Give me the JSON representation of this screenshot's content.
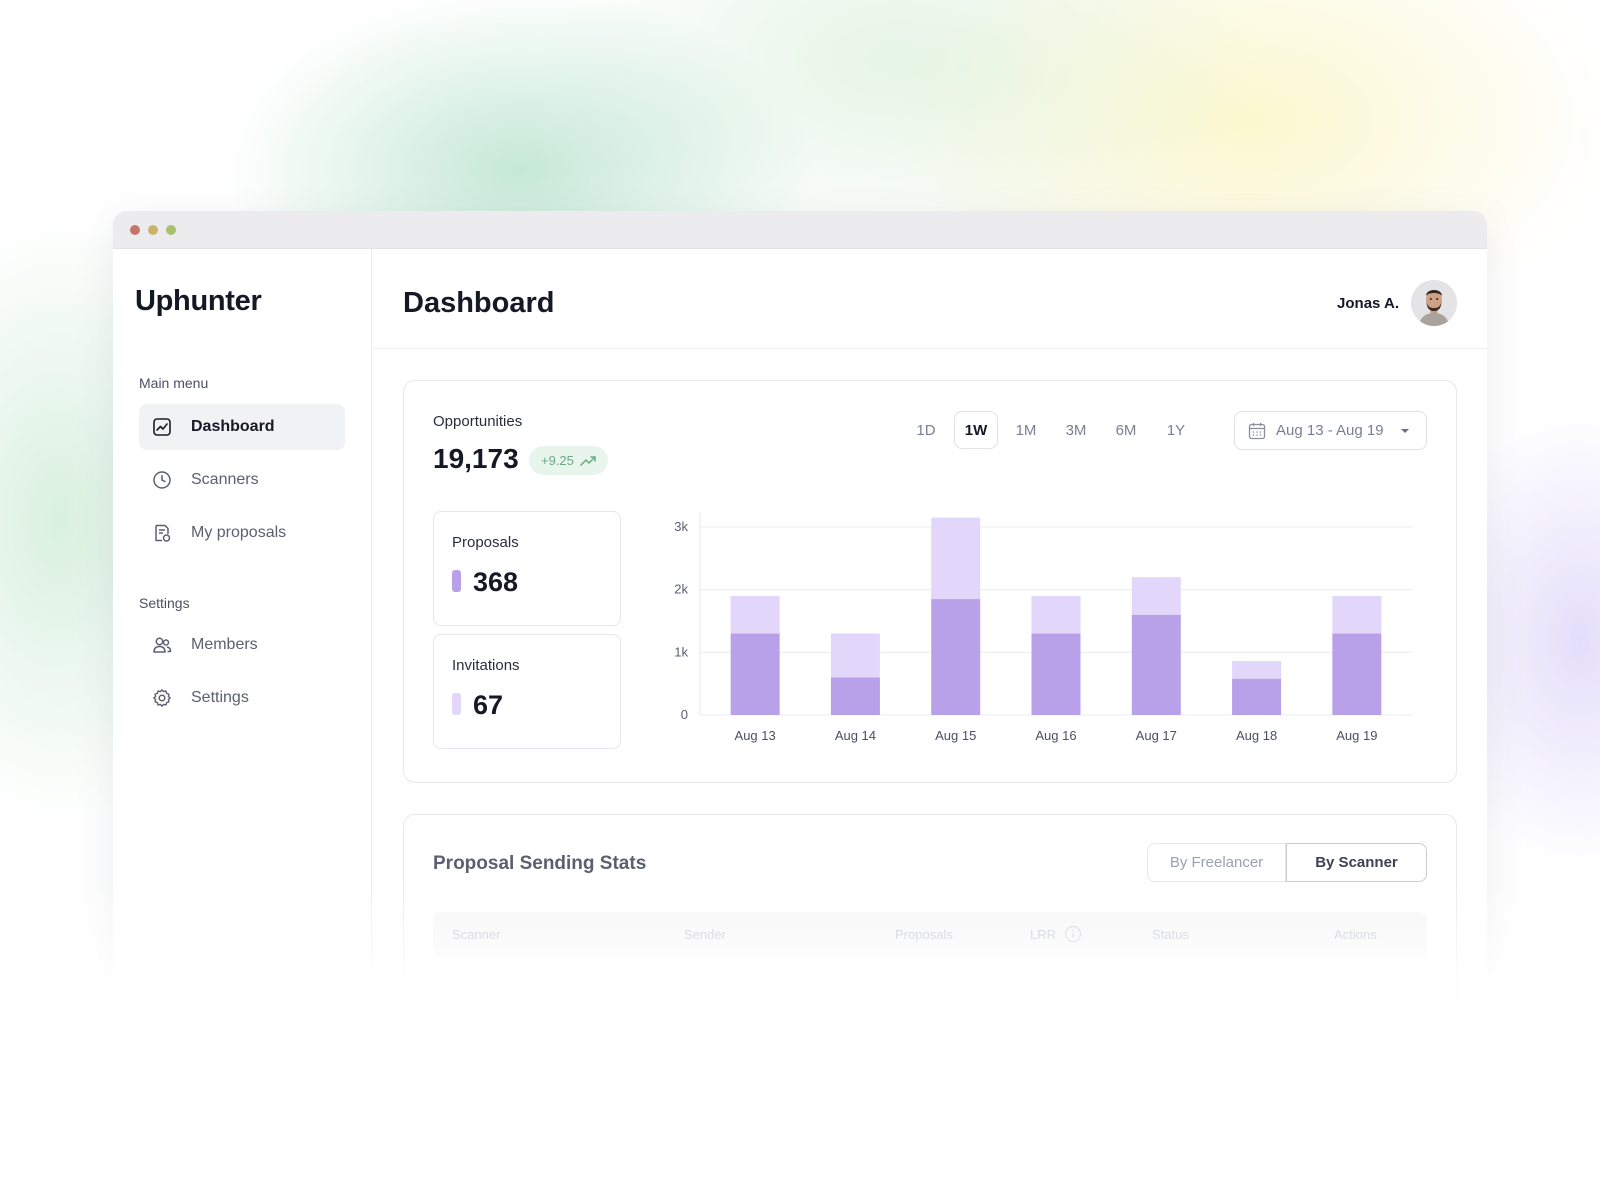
{
  "app": {
    "brand": "Uphunter"
  },
  "sidebar": {
    "main_menu_label": "Main menu",
    "main_items": [
      {
        "label": "Dashboard",
        "icon": "chart-line-icon",
        "active": true
      },
      {
        "label": "Scanners",
        "icon": "clock-icon",
        "active": false
      },
      {
        "label": "My proposals",
        "icon": "document-icon",
        "active": false
      }
    ],
    "settings_label": "Settings",
    "settings_items": [
      {
        "label": "Members",
        "icon": "users-icon"
      },
      {
        "label": "Settings",
        "icon": "gear-icon"
      }
    ]
  },
  "header": {
    "title": "Dashboard",
    "user_name": "Jonas A."
  },
  "opportunities": {
    "label": "Opportunities",
    "value": "19,173",
    "change": "+9.25",
    "ranges": [
      "1D",
      "1W",
      "1M",
      "3M",
      "6M",
      "1Y"
    ],
    "active_range": "1W",
    "date_range": "Aug 13 - Aug 19"
  },
  "stats": {
    "proposals": {
      "label": "Proposals",
      "value": "368"
    },
    "invitations": {
      "label": "Invitations",
      "value": "67"
    }
  },
  "chart_data": {
    "type": "bar",
    "stacked": true,
    "categories": [
      "Aug 13",
      "Aug 14",
      "Aug 15",
      "Aug 16",
      "Aug 17",
      "Aug 18",
      "Aug 19"
    ],
    "series": [
      {
        "name": "Proposals",
        "color": "#b9a1ea",
        "values": [
          1300,
          600,
          1850,
          1300,
          1600,
          580,
          1300
        ]
      },
      {
        "name": "Invitations",
        "color": "#e2d7fa",
        "values": [
          600,
          700,
          1300,
          600,
          600,
          280,
          600
        ]
      }
    ],
    "yticks": [
      "0",
      "1k",
      "2k",
      "3k"
    ],
    "ylim": [
      0,
      3000
    ],
    "grid": true
  },
  "proposal_stats": {
    "title": "Proposal Sending Stats",
    "toggle": [
      "By Freelancer",
      "By Scanner"
    ],
    "active_toggle": "By Scanner",
    "columns": [
      "Scanner",
      "Sender",
      "Proposals",
      "LRR",
      "Status",
      "Actions"
    ]
  },
  "colors": {
    "accent_dark": "#b9a1ea",
    "accent_light": "#e2d7fa",
    "positive": "#6aaa80",
    "dot_red": "#c9746a",
    "dot_yellow": "#c9b46a",
    "dot_green": "#a9c06a"
  }
}
